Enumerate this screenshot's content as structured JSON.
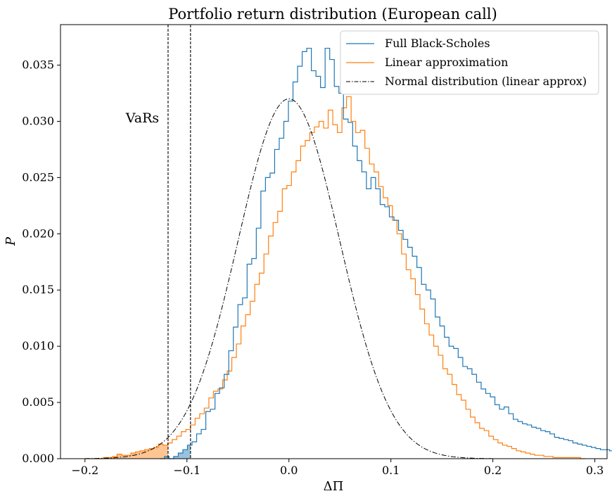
{
  "chart_data": {
    "type": "histogram",
    "title": "Portfolio return distribution (European call)",
    "xlabel": "ΔΠ",
    "ylabel": "P",
    "xlim": [
      -0.224,
      0.312
    ],
    "ylim": [
      0,
      0.0386
    ],
    "xticks": [
      -0.2,
      -0.1,
      0.0,
      0.1,
      0.2,
      0.3
    ],
    "xtick_labels": [
      "−0.2",
      "−0.1",
      "0.0",
      "0.1",
      "0.2",
      "0.3"
    ],
    "yticks": [
      0.0,
      0.005,
      0.01,
      0.015,
      0.02,
      0.025,
      0.03,
      0.035
    ],
    "ytick_labels": [
      "0.000",
      "0.005",
      "0.010",
      "0.015",
      "0.020",
      "0.025",
      "0.030",
      "0.035"
    ],
    "grid": false,
    "legend_position": "top-right",
    "annotation": {
      "text": "VaRs",
      "x": -0.16,
      "y": 0.0299
    },
    "var_lines": [
      -0.1185,
      -0.0965
    ],
    "colors": {
      "full": "#1f77b4",
      "linear": "#ff7f0e",
      "normal": "#000000"
    },
    "bin_width": 0.0045,
    "series": [
      {
        "name": "Full Black-Scholes",
        "style": "step",
        "x_start": -0.1265,
        "values": [
          0.0,
          0.0002,
          0.0,
          0.0002,
          0.0005,
          0.0008,
          0.0012,
          0.0015,
          0.0022,
          0.0026,
          0.0042,
          0.0044,
          0.0058,
          0.0063,
          0.0075,
          0.0096,
          0.0117,
          0.0137,
          0.0143,
          0.0173,
          0.0178,
          0.0205,
          0.0238,
          0.025,
          0.0254,
          0.0275,
          0.0285,
          0.03,
          0.0318,
          0.0335,
          0.0349,
          0.0362,
          0.0365,
          0.0345,
          0.034,
          0.033,
          0.0365,
          0.0355,
          0.0331,
          0.0325,
          0.0302,
          0.0299,
          0.0278,
          0.0265,
          0.0255,
          0.024,
          0.025,
          0.024,
          0.0226,
          0.0224,
          0.0215,
          0.0212,
          0.0203,
          0.0195,
          0.0188,
          0.018,
          0.017,
          0.0155,
          0.015,
          0.0142,
          0.0126,
          0.0118,
          0.0108,
          0.01,
          0.0098,
          0.009,
          0.0082,
          0.008,
          0.0075,
          0.0068,
          0.0062,
          0.0058,
          0.0055,
          0.0048,
          0.0044,
          0.0046,
          0.004,
          0.0035,
          0.0033,
          0.0031,
          0.003,
          0.0028,
          0.0027,
          0.0025,
          0.0024,
          0.0022,
          0.0019,
          0.0018,
          0.0017,
          0.0016,
          0.0014,
          0.0013,
          0.0012,
          0.0011,
          0.001,
          0.0009,
          0.0008,
          0.0008,
          0.0007,
          0.0006,
          0.0006,
          0.0005,
          0.0005,
          0.0004,
          0.0004,
          0.0003,
          0.0003,
          0.0003,
          0.0002,
          0.0002,
          0.0002,
          0.0002,
          0.0001,
          0.0002,
          0.0003,
          0.0001,
          0.0001,
          0.0001,
          0.0001,
          0.0001,
          0.0001,
          0.0001,
          0.0001,
          0.0001,
          0.0001,
          0.0001,
          0.0001,
          0.0001,
          0.0001,
          0.0001,
          0.0001,
          0.0001,
          0.0001,
          0.0001,
          0.0001,
          0.0001,
          0.0001,
          0.0001,
          0.0001,
          0.0001,
          0.0001,
          0.0001,
          0.0003,
          0.0
        ]
      },
      {
        "name": "Linear approximation",
        "style": "step",
        "x_start": -0.2,
        "values": [
          0.0,
          0.0,
          0.0,
          0.0,
          0.0001,
          0.0001,
          0.0002,
          0.0004,
          0.0003,
          0.0003,
          0.0005,
          0.0006,
          0.0007,
          0.0008,
          0.0009,
          0.001,
          0.0013,
          0.0012,
          0.0014,
          0.0017,
          0.002,
          0.0024,
          0.0026,
          0.003,
          0.0036,
          0.004,
          0.0045,
          0.0054,
          0.006,
          0.0062,
          0.007,
          0.0078,
          0.009,
          0.0102,
          0.0118,
          0.0128,
          0.014,
          0.0155,
          0.0165,
          0.0182,
          0.0198,
          0.021,
          0.022,
          0.024,
          0.0243,
          0.0255,
          0.0265,
          0.0278,
          0.0283,
          0.029,
          0.0295,
          0.03,
          0.0294,
          0.031,
          0.0297,
          0.029,
          0.0312,
          0.0322,
          0.03,
          0.029,
          0.0292,
          0.0276,
          0.0262,
          0.0255,
          0.0242,
          0.0232,
          0.0225,
          0.0212,
          0.02,
          0.0182,
          0.0168,
          0.016,
          0.0146,
          0.0133,
          0.012,
          0.011,
          0.01,
          0.0092,
          0.008,
          0.0075,
          0.0066,
          0.0057,
          0.0052,
          0.0044,
          0.0037,
          0.0032,
          0.0027,
          0.0025,
          0.002,
          0.0017,
          0.0014,
          0.0012,
          0.0011,
          0.0009,
          0.0007,
          0.0006,
          0.0005,
          0.0004,
          0.0003,
          0.0003,
          0.0002,
          0.0002,
          0.0001,
          0.0001,
          0.0001,
          0.0001,
          0.0001,
          0.0001,
          0.0
        ]
      },
      {
        "name": "Normal distribution (linear approx)",
        "style": "dashdot",
        "mean": 0.0,
        "std": 0.0498,
        "peak": 0.032,
        "x_range": [
          -0.2,
          0.2
        ]
      }
    ]
  }
}
